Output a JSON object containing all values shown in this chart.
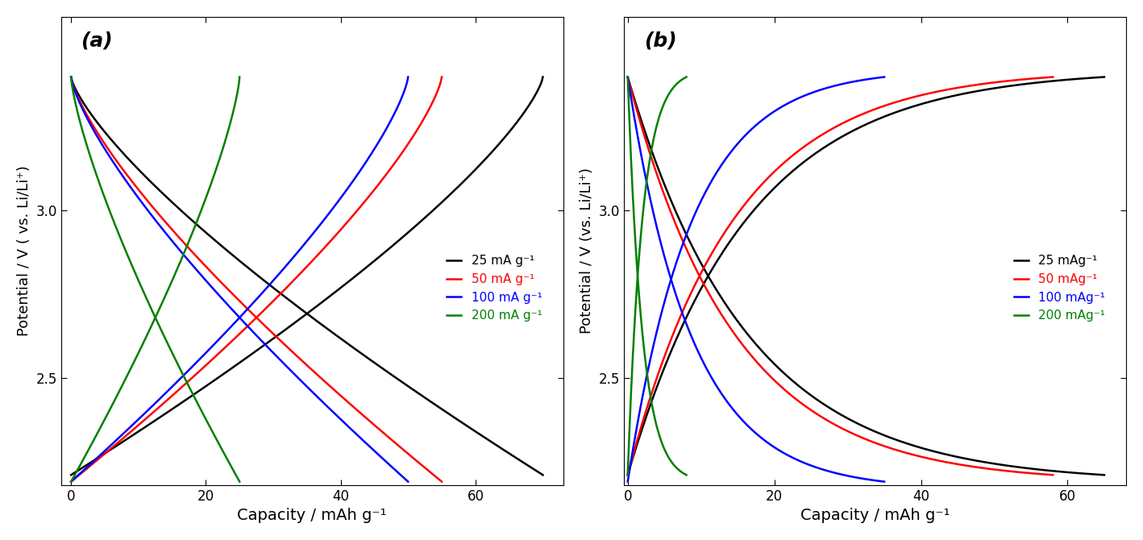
{
  "panel_a_label": "(a)",
  "panel_b_label": "(b)",
  "xlabel": "Capacity / mAh g⁻¹",
  "ylabel_a": "Potential / V ( vs. Li/Li⁺)",
  "ylabel_b": "Potential / V (vs. Li/Li⁺)",
  "ylim": [
    2.18,
    3.58
  ],
  "xlim_a": [
    -1.5,
    73
  ],
  "xlim_b": [
    -0.5,
    68
  ],
  "xticks_a": [
    0,
    20,
    40,
    60
  ],
  "xticks_b": [
    0,
    20,
    40,
    60
  ],
  "yticks": [
    2.5,
    3.0
  ],
  "colors": [
    "black",
    "red",
    "blue",
    "green"
  ],
  "legend_labels_a": [
    "25 mA g⁻¹",
    "50 mA g⁻¹",
    "100 mA g⁻¹",
    "200 mA g⁻¹"
  ],
  "legend_labels_b": [
    "25 mAg⁻¹",
    "50 mAg⁻¹",
    "100 mAg⁻¹",
    "200 mAg⁻¹"
  ],
  "linewidth": 1.8,
  "panel_a": {
    "black": {
      "x_max": 70,
      "v_high": 3.4,
      "v_low": 2.21
    },
    "red": {
      "x_max": 55,
      "v_high": 3.4,
      "v_low": 2.19
    },
    "blue": {
      "x_max": 50,
      "v_high": 3.4,
      "v_low": 2.19
    },
    "green": {
      "x_max": 25,
      "v_high": 3.4,
      "v_low": 2.19
    }
  },
  "panel_b": {
    "black": {
      "x_max": 65,
      "v_high": 3.4,
      "v_low": 2.21
    },
    "red": {
      "x_max": 58,
      "v_high": 3.4,
      "v_low": 2.21
    },
    "blue": {
      "x_max": 35,
      "v_high": 3.4,
      "v_low": 2.19
    },
    "green": {
      "x_max": 8,
      "v_high": 3.4,
      "v_low": 2.21
    }
  }
}
